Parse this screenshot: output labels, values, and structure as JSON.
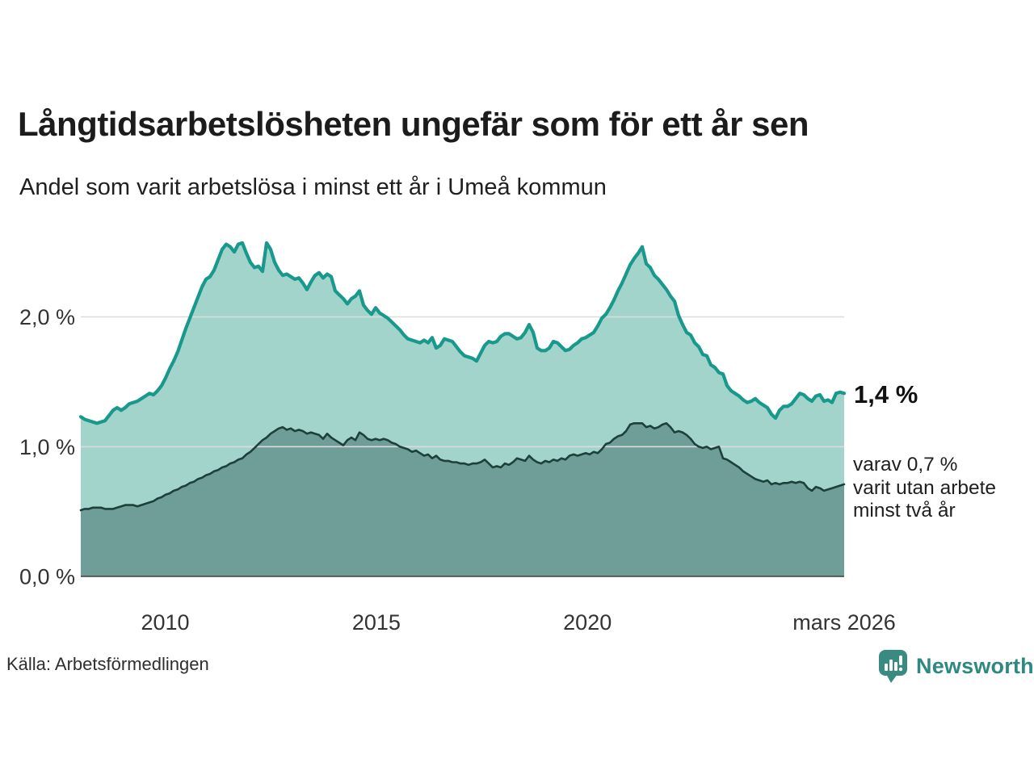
{
  "header": {
    "title": "Långtidsarbetslösheten ungefär som för ett år sen",
    "subtitle": "Andel som varit arbetslösa i minst ett år i Umeå kommun"
  },
  "annotations": {
    "total_value": "1,4 %",
    "dark_line1": "varav 0,7 %",
    "dark_line2": "varit utan arbete",
    "dark_line3": "minst två år"
  },
  "footer": {
    "source": "Källa: Arbetsförmedlingen",
    "brand": "Newsworthy"
  },
  "colors": {
    "total_line": "#18998c",
    "total_fill": "#a3d4cc",
    "dark_line": "#1d403b",
    "dark_fill": "#6f9d97",
    "grid": "#d8dddc",
    "axis_line": "#3f3f3f",
    "tick_text": "#333333",
    "brand_teal": "#398b82"
  },
  "chart_data": {
    "type": "area",
    "title": "Långtidsarbetslösheten ungefär som för ett år sen",
    "subtitle": "Andel som varit arbetslösa i minst ett år i Umeå kommun",
    "unit": "%",
    "x_range": [
      2008.0,
      2026.08
    ],
    "ylim": [
      0,
      2.65
    ],
    "grid": "horizontal",
    "y_ticks": [
      {
        "value": 0,
        "label": "0,0 %"
      },
      {
        "value": 1,
        "label": "1,0 %"
      },
      {
        "value": 2,
        "label": "2,0 %"
      }
    ],
    "x_ticks": [
      {
        "pos": 2010,
        "label": "2010"
      },
      {
        "pos": 2015,
        "label": "2015"
      },
      {
        "pos": 2020,
        "label": "2020"
      },
      {
        "pos": 2026.08,
        "label": "mars 2026"
      }
    ],
    "series": [
      {
        "name": "Andel som varit arbetslösa i minst ett år",
        "end_label": "1,4 %",
        "values": [
          1.23,
          1.21,
          1.2,
          1.19,
          1.18,
          1.19,
          1.2,
          1.24,
          1.28,
          1.3,
          1.28,
          1.3,
          1.33,
          1.34,
          1.35,
          1.37,
          1.39,
          1.41,
          1.4,
          1.43,
          1.47,
          1.53,
          1.6,
          1.66,
          1.73,
          1.82,
          1.91,
          1.99,
          2.07,
          2.15,
          2.23,
          2.29,
          2.31,
          2.36,
          2.44,
          2.52,
          2.56,
          2.54,
          2.5,
          2.56,
          2.57,
          2.49,
          2.42,
          2.38,
          2.39,
          2.35,
          2.57,
          2.52,
          2.42,
          2.36,
          2.32,
          2.33,
          2.31,
          2.29,
          2.3,
          2.26,
          2.21,
          2.27,
          2.32,
          2.34,
          2.3,
          2.33,
          2.31,
          2.2,
          2.17,
          2.14,
          2.1,
          2.14,
          2.16,
          2.2,
          2.09,
          2.05,
          2.02,
          2.07,
          2.03,
          2.01,
          1.99,
          1.96,
          1.93,
          1.9,
          1.86,
          1.83,
          1.82,
          1.81,
          1.8,
          1.82,
          1.8,
          1.84,
          1.76,
          1.78,
          1.83,
          1.82,
          1.81,
          1.77,
          1.73,
          1.7,
          1.69,
          1.68,
          1.66,
          1.72,
          1.78,
          1.81,
          1.8,
          1.81,
          1.85,
          1.87,
          1.87,
          1.85,
          1.83,
          1.84,
          1.88,
          1.94,
          1.88,
          1.76,
          1.74,
          1.74,
          1.76,
          1.81,
          1.8,
          1.77,
          1.74,
          1.75,
          1.78,
          1.8,
          1.83,
          1.84,
          1.86,
          1.88,
          1.93,
          1.99,
          2.02,
          2.07,
          2.13,
          2.2,
          2.26,
          2.33,
          2.4,
          2.45,
          2.49,
          2.54,
          2.41,
          2.38,
          2.32,
          2.29,
          2.25,
          2.21,
          2.16,
          2.12,
          2.01,
          1.94,
          1.88,
          1.86,
          1.8,
          1.77,
          1.71,
          1.7,
          1.63,
          1.61,
          1.57,
          1.56,
          1.47,
          1.43,
          1.41,
          1.39,
          1.36,
          1.34,
          1.35,
          1.37,
          1.34,
          1.32,
          1.3,
          1.25,
          1.22,
          1.28,
          1.31,
          1.31,
          1.33,
          1.37,
          1.41,
          1.4,
          1.37,
          1.35,
          1.39,
          1.4,
          1.35,
          1.36,
          1.34,
          1.41,
          1.42,
          1.41
        ]
      },
      {
        "name": "varav varit utan arbete minst två år",
        "end_label": "varav 0,7 % varit utan arbete minst två år",
        "values": [
          0.51,
          0.52,
          0.52,
          0.53,
          0.53,
          0.53,
          0.52,
          0.52,
          0.52,
          0.53,
          0.54,
          0.55,
          0.55,
          0.55,
          0.54,
          0.55,
          0.56,
          0.57,
          0.58,
          0.6,
          0.61,
          0.63,
          0.64,
          0.66,
          0.67,
          0.69,
          0.7,
          0.72,
          0.73,
          0.75,
          0.76,
          0.78,
          0.79,
          0.81,
          0.82,
          0.84,
          0.85,
          0.87,
          0.88,
          0.9,
          0.91,
          0.94,
          0.96,
          0.99,
          1.02,
          1.05,
          1.07,
          1.1,
          1.12,
          1.14,
          1.15,
          1.13,
          1.14,
          1.12,
          1.13,
          1.12,
          1.1,
          1.11,
          1.1,
          1.09,
          1.06,
          1.1,
          1.07,
          1.05,
          1.03,
          1.01,
          1.05,
          1.07,
          1.05,
          1.11,
          1.09,
          1.06,
          1.05,
          1.06,
          1.05,
          1.06,
          1.05,
          1.03,
          1.02,
          1.0,
          0.99,
          0.98,
          0.96,
          0.97,
          0.95,
          0.93,
          0.94,
          0.91,
          0.93,
          0.9,
          0.89,
          0.89,
          0.88,
          0.88,
          0.87,
          0.87,
          0.86,
          0.87,
          0.87,
          0.88,
          0.9,
          0.87,
          0.84,
          0.85,
          0.84,
          0.87,
          0.86,
          0.88,
          0.91,
          0.9,
          0.89,
          0.93,
          0.9,
          0.88,
          0.87,
          0.89,
          0.88,
          0.9,
          0.89,
          0.91,
          0.9,
          0.93,
          0.94,
          0.93,
          0.94,
          0.95,
          0.94,
          0.96,
          0.95,
          0.98,
          1.02,
          1.03,
          1.06,
          1.08,
          1.09,
          1.12,
          1.17,
          1.18,
          1.18,
          1.18,
          1.15,
          1.16,
          1.14,
          1.15,
          1.17,
          1.18,
          1.15,
          1.11,
          1.12,
          1.11,
          1.09,
          1.06,
          1.02,
          1.0,
          0.99,
          1.0,
          0.98,
          0.99,
          1.0,
          0.91,
          0.9,
          0.88,
          0.86,
          0.84,
          0.81,
          0.79,
          0.77,
          0.75,
          0.74,
          0.73,
          0.74,
          0.71,
          0.72,
          0.71,
          0.72,
          0.72,
          0.73,
          0.72,
          0.73,
          0.72,
          0.68,
          0.66,
          0.69,
          0.68,
          0.66,
          0.67,
          0.68,
          0.69,
          0.7,
          0.71
        ]
      }
    ]
  }
}
